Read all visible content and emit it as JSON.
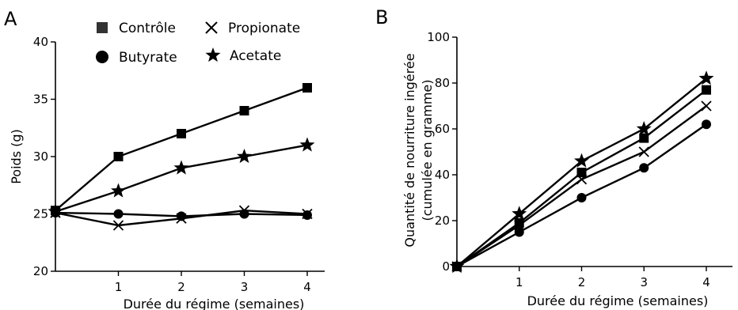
{
  "figure": {
    "panel_a_label": "A",
    "panel_b_label": "B"
  },
  "legend": [
    {
      "label": "Contrôle",
      "marker": "square"
    },
    {
      "label": "Propionate",
      "marker": "x"
    },
    {
      "label": "Butyrate",
      "marker": "circle"
    },
    {
      "label": "Acetate",
      "marker": "star"
    }
  ],
  "chart_data": [
    {
      "panel": "A",
      "type": "line",
      "xlabel": "Durée du régime (semaines)",
      "ylabel": "Poids (g)",
      "x": [
        0,
        1,
        2,
        3,
        4
      ],
      "x_ticks": [
        "1",
        "2",
        "3",
        "4"
      ],
      "xlim": [
        0,
        4
      ],
      "ylim": [
        20,
        40
      ],
      "y_ticks": [
        20,
        25,
        30,
        35,
        40
      ],
      "grid": false,
      "legend_position": "top",
      "series": [
        {
          "name": "Contrôle",
          "marker": "square",
          "values": [
            25.3,
            30,
            32,
            34,
            36
          ]
        },
        {
          "name": "Propionate",
          "marker": "x",
          "values": [
            25.1,
            24,
            24.6,
            25.3,
            25
          ]
        },
        {
          "name": "Butyrate",
          "marker": "circle",
          "values": [
            25.1,
            25,
            24.8,
            25,
            24.9
          ]
        },
        {
          "name": "Acetate",
          "marker": "star",
          "values": [
            25.2,
            27,
            29,
            30,
            31
          ]
        }
      ]
    },
    {
      "panel": "B",
      "type": "line",
      "xlabel": "Durée du régime (semaines)",
      "ylabel": "Quantité de nourriture ingérée (cumulée en gramme)",
      "ylabel_lines": [
        "Quantité de nourriture ingérée",
        "(cumulée en gramme)"
      ],
      "x": [
        0,
        1,
        2,
        3,
        4
      ],
      "x_ticks": [
        "1",
        "2",
        "3",
        "4"
      ],
      "xlim": [
        0,
        4
      ],
      "ylim": [
        0,
        100
      ],
      "y_ticks": [
        0,
        20,
        40,
        60,
        80,
        100
      ],
      "grid": false,
      "series": [
        {
          "name": "Contrôle",
          "marker": "square",
          "values": [
            0,
            19,
            41,
            56,
            77
          ]
        },
        {
          "name": "Propionate",
          "marker": "x",
          "values": [
            0,
            18,
            38,
            50,
            70
          ]
        },
        {
          "name": "Butyrate",
          "marker": "circle",
          "values": [
            0,
            15,
            30,
            43,
            62
          ]
        },
        {
          "name": "Acetate",
          "marker": "star",
          "values": [
            0,
            23,
            46,
            60,
            82
          ]
        }
      ]
    }
  ]
}
